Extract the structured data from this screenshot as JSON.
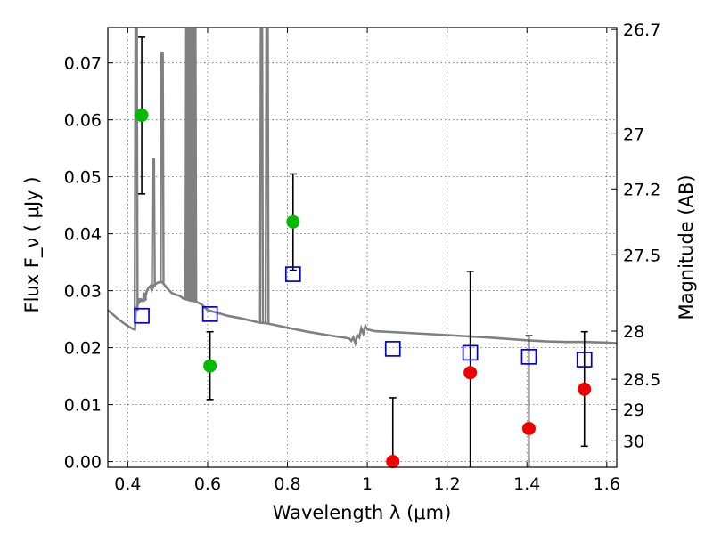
{
  "chart_data": {
    "type": "scatter",
    "xlabel": "Wavelength  λ (μm)",
    "ylabel": "Flux  F_ν  ( μJy )",
    "ylabel_right": "Magnitude (AB)",
    "xlim": [
      0.35,
      1.625
    ],
    "ylim": [
      -0.001,
      0.0762
    ],
    "grid": true,
    "x_ticks": [
      {
        "value": 0.4,
        "label": "0.4"
      },
      {
        "value": 0.6,
        "label": "0.6"
      },
      {
        "value": 0.8,
        "label": "0.8"
      },
      {
        "value": 1.0,
        "label": "1"
      },
      {
        "value": 1.2,
        "label": "1.2"
      },
      {
        "value": 1.4,
        "label": "1.4"
      },
      {
        "value": 1.6,
        "label": "1.6"
      }
    ],
    "y_ticks": [
      {
        "value": 0.0,
        "label": "0.00"
      },
      {
        "value": 0.01,
        "label": "0.01"
      },
      {
        "value": 0.02,
        "label": "0.02"
      },
      {
        "value": 0.03,
        "label": "0.03"
      },
      {
        "value": 0.04,
        "label": "0.04"
      },
      {
        "value": 0.05,
        "label": "0.05"
      },
      {
        "value": 0.06,
        "label": "0.06"
      },
      {
        "value": 0.07,
        "label": "0.07"
      }
    ],
    "right_ticks": [
      {
        "mag": 26.7,
        "label": "26.7"
      },
      {
        "mag": 27.0,
        "label": "27"
      },
      {
        "mag": 27.2,
        "label": "27.2"
      },
      {
        "mag": 27.5,
        "label": "27.5"
      },
      {
        "mag": 28.0,
        "label": "28"
      },
      {
        "mag": 28.5,
        "label": "28.5"
      },
      {
        "mag": 29.0,
        "label": "29"
      },
      {
        "mag": 30.0,
        "label": "30"
      }
    ],
    "colors": {
      "detection": "#00bb00",
      "upper_limit": "#ee0000",
      "model": "#0000dd",
      "spectrum": "#808080",
      "errorbar": "#000000"
    },
    "series": [
      {
        "kind": "green",
        "points": [
          {
            "x": 0.435,
            "y": 0.0608,
            "ylo": 0.047,
            "yhi": 0.0745
          },
          {
            "x": 0.606,
            "y": 0.0168,
            "ylo": 0.0109,
            "yhi": 0.0228
          },
          {
            "x": 0.814,
            "y": 0.0421,
            "ylo": 0.0336,
            "yhi": 0.0505
          }
        ]
      },
      {
        "kind": "red",
        "points": [
          {
            "x": 1.064,
            "y": 0.0,
            "ylo": -0.001,
            "yhi": 0.0112
          },
          {
            "x": 1.258,
            "y": 0.0156,
            "ylo": -0.001,
            "yhi": 0.0334
          },
          {
            "x": 1.405,
            "y": 0.0058,
            "ylo": -0.001,
            "yhi": 0.0221
          },
          {
            "x": 1.544,
            "y": 0.0127,
            "ylo": 0.0027,
            "yhi": 0.0228
          }
        ]
      },
      {
        "kind": "model",
        "points": [
          {
            "x": 0.435,
            "y": 0.0256
          },
          {
            "x": 0.606,
            "y": 0.0259
          },
          {
            "x": 0.814,
            "y": 0.0329
          },
          {
            "x": 1.064,
            "y": 0.0198
          },
          {
            "x": 1.258,
            "y": 0.0191
          },
          {
            "x": 1.405,
            "y": 0.0184
          },
          {
            "x": 1.544,
            "y": 0.0179
          }
        ]
      }
    ],
    "spectrum": [
      [
        0.35,
        0.0266
      ],
      [
        0.38,
        0.0248
      ],
      [
        0.4,
        0.0238
      ],
      [
        0.415,
        0.0232
      ],
      [
        0.418,
        0.0232
      ],
      [
        0.42,
        0.0262
      ],
      [
        0.425,
        0.0276
      ],
      [
        0.43,
        0.0281
      ],
      [
        0.435,
        0.0283
      ],
      [
        0.437,
        0.0282
      ],
      [
        0.442,
        0.0283
      ],
      [
        0.448,
        0.03
      ],
      [
        0.452,
        0.0305
      ],
      [
        0.456,
        0.0308
      ],
      [
        0.46,
        0.0301
      ],
      [
        0.465,
        0.0309
      ],
      [
        0.47,
        0.0312
      ],
      [
        0.475,
        0.0314
      ],
      [
        0.48,
        0.0315
      ],
      [
        0.485,
        0.0315
      ],
      [
        0.49,
        0.0312
      ],
      [
        0.5,
        0.0303
      ],
      [
        0.51,
        0.0296
      ],
      [
        0.52,
        0.0293
      ],
      [
        0.53,
        0.0291
      ],
      [
        0.54,
        0.0286
      ],
      [
        0.555,
        0.0283
      ],
      [
        0.57,
        0.0281
      ],
      [
        0.585,
        0.0276
      ],
      [
        0.6,
        0.0266
      ],
      [
        0.62,
        0.0262
      ],
      [
        0.65,
        0.0256
      ],
      [
        0.68,
        0.0252
      ],
      [
        0.7,
        0.0249
      ],
      [
        0.73,
        0.0244
      ],
      [
        0.745,
        0.0243
      ],
      [
        0.76,
        0.0241
      ],
      [
        0.8,
        0.0235
      ],
      [
        0.85,
        0.0228
      ],
      [
        0.9,
        0.0222
      ],
      [
        0.94,
        0.0218
      ],
      [
        0.955,
        0.0216
      ],
      [
        0.96,
        0.0212
      ],
      [
        0.965,
        0.0218
      ],
      [
        0.97,
        0.0208
      ],
      [
        0.975,
        0.0222
      ],
      [
        0.98,
        0.0218
      ],
      [
        0.985,
        0.0234
      ],
      [
        0.99,
        0.0225
      ],
      [
        0.995,
        0.0238
      ],
      [
        1.0,
        0.0232
      ],
      [
        1.02,
        0.0229
      ],
      [
        1.1,
        0.0226
      ],
      [
        1.2,
        0.0222
      ],
      [
        1.3,
        0.0218
      ],
      [
        1.4,
        0.0213
      ],
      [
        1.45,
        0.0211
      ],
      [
        1.5,
        0.021
      ],
      [
        1.55,
        0.021
      ],
      [
        1.6,
        0.0209
      ],
      [
        1.625,
        0.0208
      ]
    ],
    "emission_lines": [
      {
        "x": 0.421,
        "ytop": 0.0762
      },
      {
        "x": 0.431,
        "ytop": 0.0285
      },
      {
        "x": 0.442,
        "ytop": 0.0295
      },
      {
        "x": 0.464,
        "ytop": 0.0531
      },
      {
        "x": 0.486,
        "ytop": 0.0718
      },
      {
        "x": 0.548,
        "ytop": 0.0762
      },
      {
        "x": 0.552,
        "ytop": 0.0762
      },
      {
        "x": 0.556,
        "ytop": 0.0762
      },
      {
        "x": 0.564,
        "ytop": 0.0762
      },
      {
        "x": 0.568,
        "ytop": 0.0762
      },
      {
        "x": 0.735,
        "ytop": 0.0762
      },
      {
        "x": 0.749,
        "ytop": 0.0762
      }
    ]
  }
}
